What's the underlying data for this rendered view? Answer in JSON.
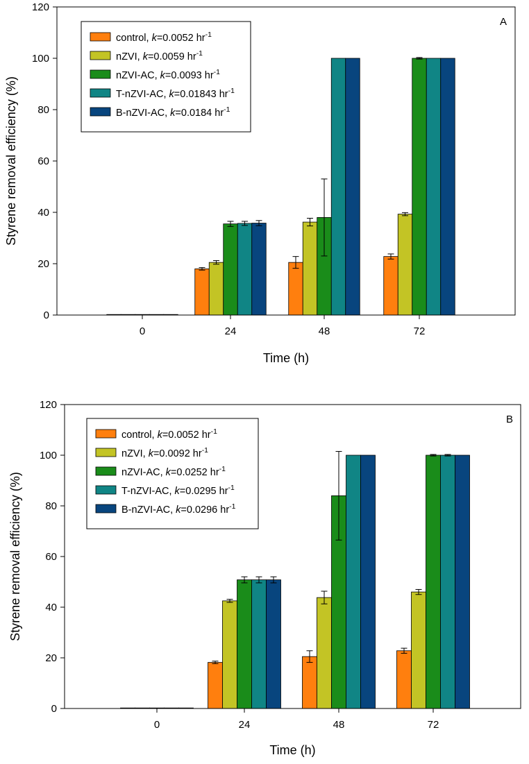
{
  "chart_data": [
    {
      "type": "bar",
      "panel_label": "A",
      "xlabel": "Time (h)",
      "ylabel": "Styrene removal efficiency (%)",
      "ylim": [
        0,
        120
      ],
      "yticks": [
        "0",
        "20",
        "40",
        "60",
        "80",
        "100",
        "120"
      ],
      "categories": [
        "0",
        "24",
        "48",
        "72"
      ],
      "grid": false,
      "legend_position": "top-left",
      "series": [
        {
          "name": "control",
          "k_text": "=0.0052 hr",
          "color": "#ff7f0e",
          "values": [
            0,
            18,
            20.5,
            22.8
          ],
          "errors": [
            0,
            0.5,
            2.3,
            1.0
          ]
        },
        {
          "name": "nZVI",
          "k_text": "=0.0059 hr",
          "color": "#c3c425",
          "values": [
            0,
            20.5,
            36.2,
            39.3
          ],
          "errors": [
            0,
            0.7,
            1.5,
            0.6
          ]
        },
        {
          "name": "nZVI-AC",
          "k_text": "=0.0093 hr",
          "color": "#1a8c1a",
          "values": [
            0,
            35.5,
            38.0,
            100
          ],
          "errors": [
            0,
            1.0,
            15.0,
            0.3
          ]
        },
        {
          "name": "T-nZVI-AC",
          "k_text": "=0.01843 hr",
          "color": "#108585",
          "values": [
            0,
            35.7,
            100,
            100
          ],
          "errors": [
            0,
            0.8,
            0,
            0
          ]
        },
        {
          "name": "B-nZVI-AC",
          "k_text": "=0.0184 hr",
          "color": "#08457e",
          "values": [
            0,
            35.8,
            100,
            100
          ],
          "errors": [
            0,
            1.0,
            0,
            0
          ]
        }
      ]
    },
    {
      "type": "bar",
      "panel_label": "B",
      "xlabel": "Time (h)",
      "ylabel": "Styrene removal efficiency (%)",
      "ylim": [
        0,
        120
      ],
      "yticks": [
        "0",
        "20",
        "40",
        "60",
        "80",
        "100",
        "120"
      ],
      "categories": [
        "0",
        "24",
        "48",
        "72"
      ],
      "grid": false,
      "legend_position": "top-left",
      "series": [
        {
          "name": "control",
          "k_text": "=0.0052 hr",
          "color": "#ff7f0e",
          "values": [
            0.2,
            18.2,
            20.5,
            22.8
          ],
          "errors": [
            0,
            0.5,
            2.3,
            1.0
          ]
        },
        {
          "name": "nZVI",
          "k_text": "=0.0092 hr",
          "color": "#c3c425",
          "values": [
            0.2,
            42.5,
            43.8,
            46.0
          ],
          "errors": [
            0,
            0.6,
            2.5,
            1.0
          ]
        },
        {
          "name": "nZVI-AC",
          "k_text": "=0.0252 hr",
          "color": "#1a8c1a",
          "values": [
            0.2,
            50.8,
            84.0,
            100
          ],
          "errors": [
            0,
            1.2,
            17.5,
            0.3
          ]
        },
        {
          "name": "T-nZVI-AC",
          "k_text": "=0.0295 hr",
          "color": "#108585",
          "values": [
            0.2,
            50.8,
            100,
            100
          ],
          "errors": [
            0,
            1.2,
            0,
            0.3
          ]
        },
        {
          "name": "B-nZVI-AC",
          "k_text": "=0.0296 hr",
          "color": "#08457e",
          "values": [
            0.2,
            50.8,
            100,
            100
          ],
          "errors": [
            0,
            1.2,
            0,
            0
          ]
        }
      ]
    }
  ],
  "legend_k_symbol": "k",
  "legend_separator": ", ",
  "legend_exponent": "-1"
}
